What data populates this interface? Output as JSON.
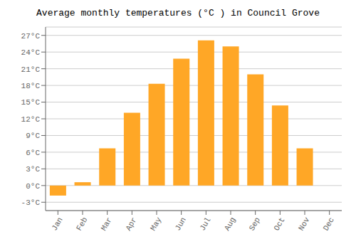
{
  "chart_data": {
    "type": "bar",
    "title": "Average monthly temperatures (°C ) in Council Grove",
    "categories": [
      "Jan",
      "Feb",
      "Mar",
      "Apr",
      "May",
      "Jun",
      "Jul",
      "Aug",
      "Sep",
      "Oct",
      "Nov",
      "Dec"
    ],
    "values": [
      -1.8,
      0.6,
      6.7,
      13.1,
      18.3,
      22.8,
      26.1,
      25.0,
      20.0,
      14.4,
      6.7,
      0.0
    ],
    "color": "#FFA726",
    "ylim": [
      -4.5,
      28.5
    ],
    "yticks": [
      {
        "value": -3,
        "label": "-3°C"
      },
      {
        "value": 0,
        "label": "0°C"
      },
      {
        "value": 3,
        "label": "3°C"
      },
      {
        "value": 6,
        "label": "6°C"
      },
      {
        "value": 9,
        "label": "9°C"
      },
      {
        "value": 12,
        "label": "12°C"
      },
      {
        "value": 15,
        "label": "15°C"
      },
      {
        "value": 18,
        "label": "18°C"
      },
      {
        "value": 21,
        "label": "21°C"
      },
      {
        "value": 24,
        "label": "24°C"
      },
      {
        "value": 27,
        "label": "27°C"
      }
    ],
    "grid": true
  }
}
